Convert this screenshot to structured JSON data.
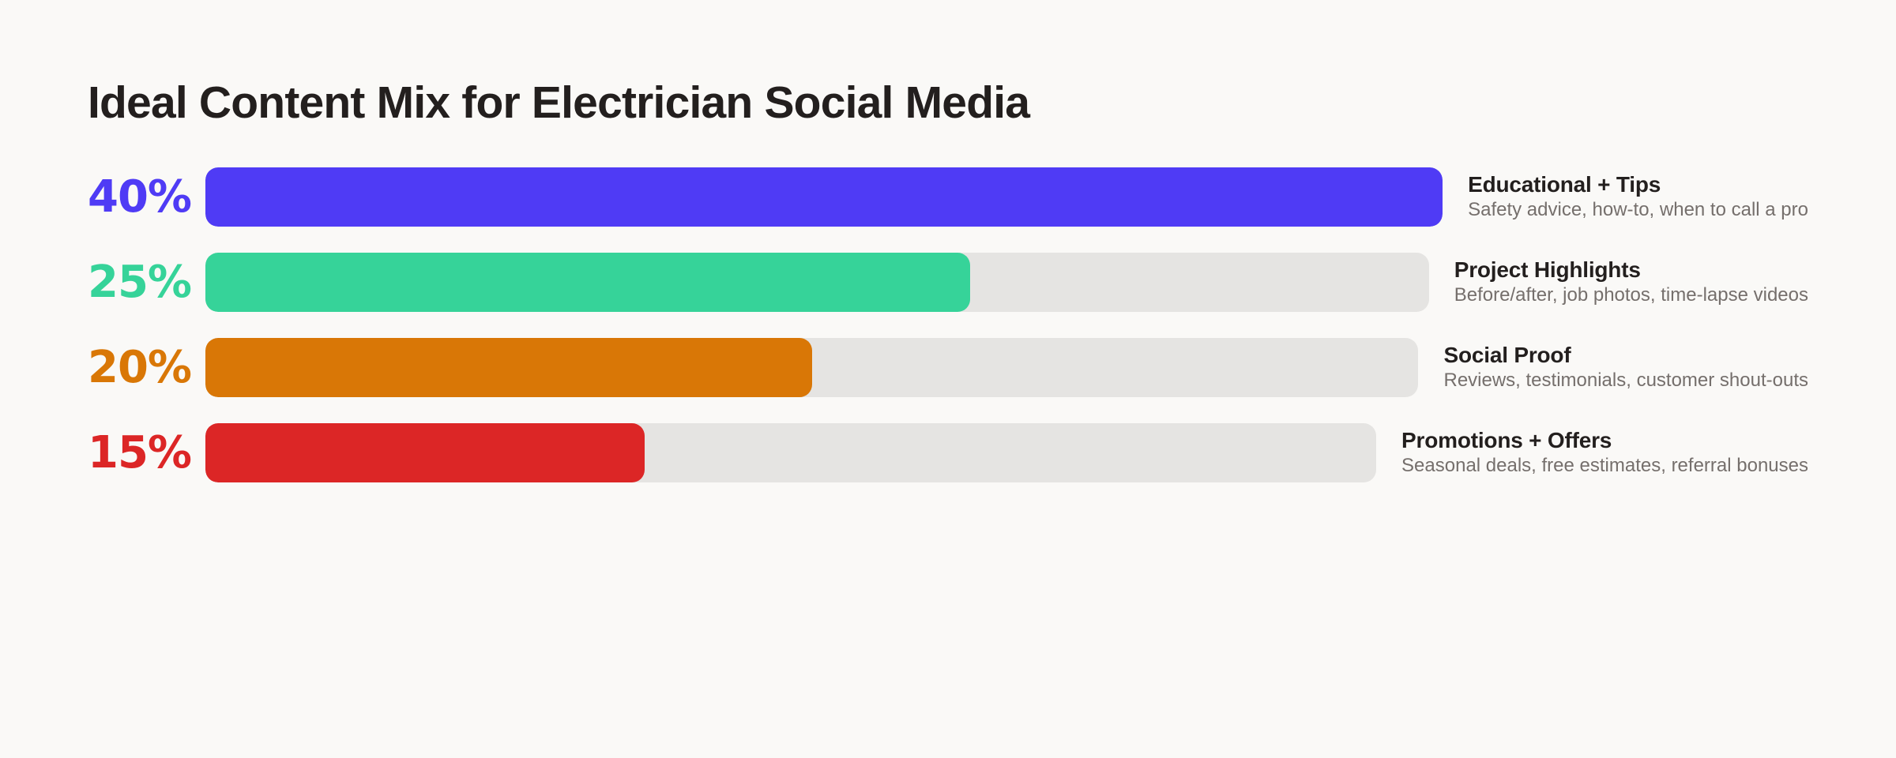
{
  "title": "Ideal Content Mix for Electrician Social Media",
  "colors": {
    "background": "#faf9f7",
    "track": "#e5e4e2",
    "title_text": "#231f1e",
    "desc_text": "#756f6c"
  },
  "rows": [
    {
      "pct_label": "40%",
      "value": 40,
      "color": "#4f3bf5",
      "title": "Educational + Tips",
      "description": "Safety advice, how-to, when to call a pro"
    },
    {
      "pct_label": "25%",
      "value": 25,
      "color": "#36d399",
      "title": "Project Highlights",
      "description": "Before/after, job photos, time-lapse videos"
    },
    {
      "pct_label": "20%",
      "value": 20,
      "color": "#d97706",
      "title": "Social Proof",
      "description": "Reviews, testimonials, customer shout-outs"
    },
    {
      "pct_label": "15%",
      "value": 15,
      "color": "#dc2626",
      "title": "Promotions + Offers",
      "description": "Seasonal deals, free estimates, referral bonuses"
    }
  ],
  "chart_data": {
    "type": "bar",
    "orientation": "horizontal",
    "title": "Ideal Content Mix for Electrician Social Media",
    "categories": [
      "Educational + Tips",
      "Project Highlights",
      "Social Proof",
      "Promotions + Offers"
    ],
    "values": [
      40,
      25,
      20,
      15
    ],
    "value_labels": [
      "40%",
      "25%",
      "20%",
      "15%"
    ],
    "descriptions": [
      "Safety advice, how-to, when to call a pro",
      "Before/after, job photos, time-lapse videos",
      "Reviews, testimonials, customer shout-outs",
      "Seasonal deals, free estimates, referral bonuses"
    ],
    "colors": [
      "#4f3bf5",
      "#36d399",
      "#d97706",
      "#dc2626"
    ],
    "unit": "%",
    "scale_max": 40,
    "xlabel": "",
    "ylabel": "",
    "grid": false,
    "legend": "inline labels right of bars"
  }
}
